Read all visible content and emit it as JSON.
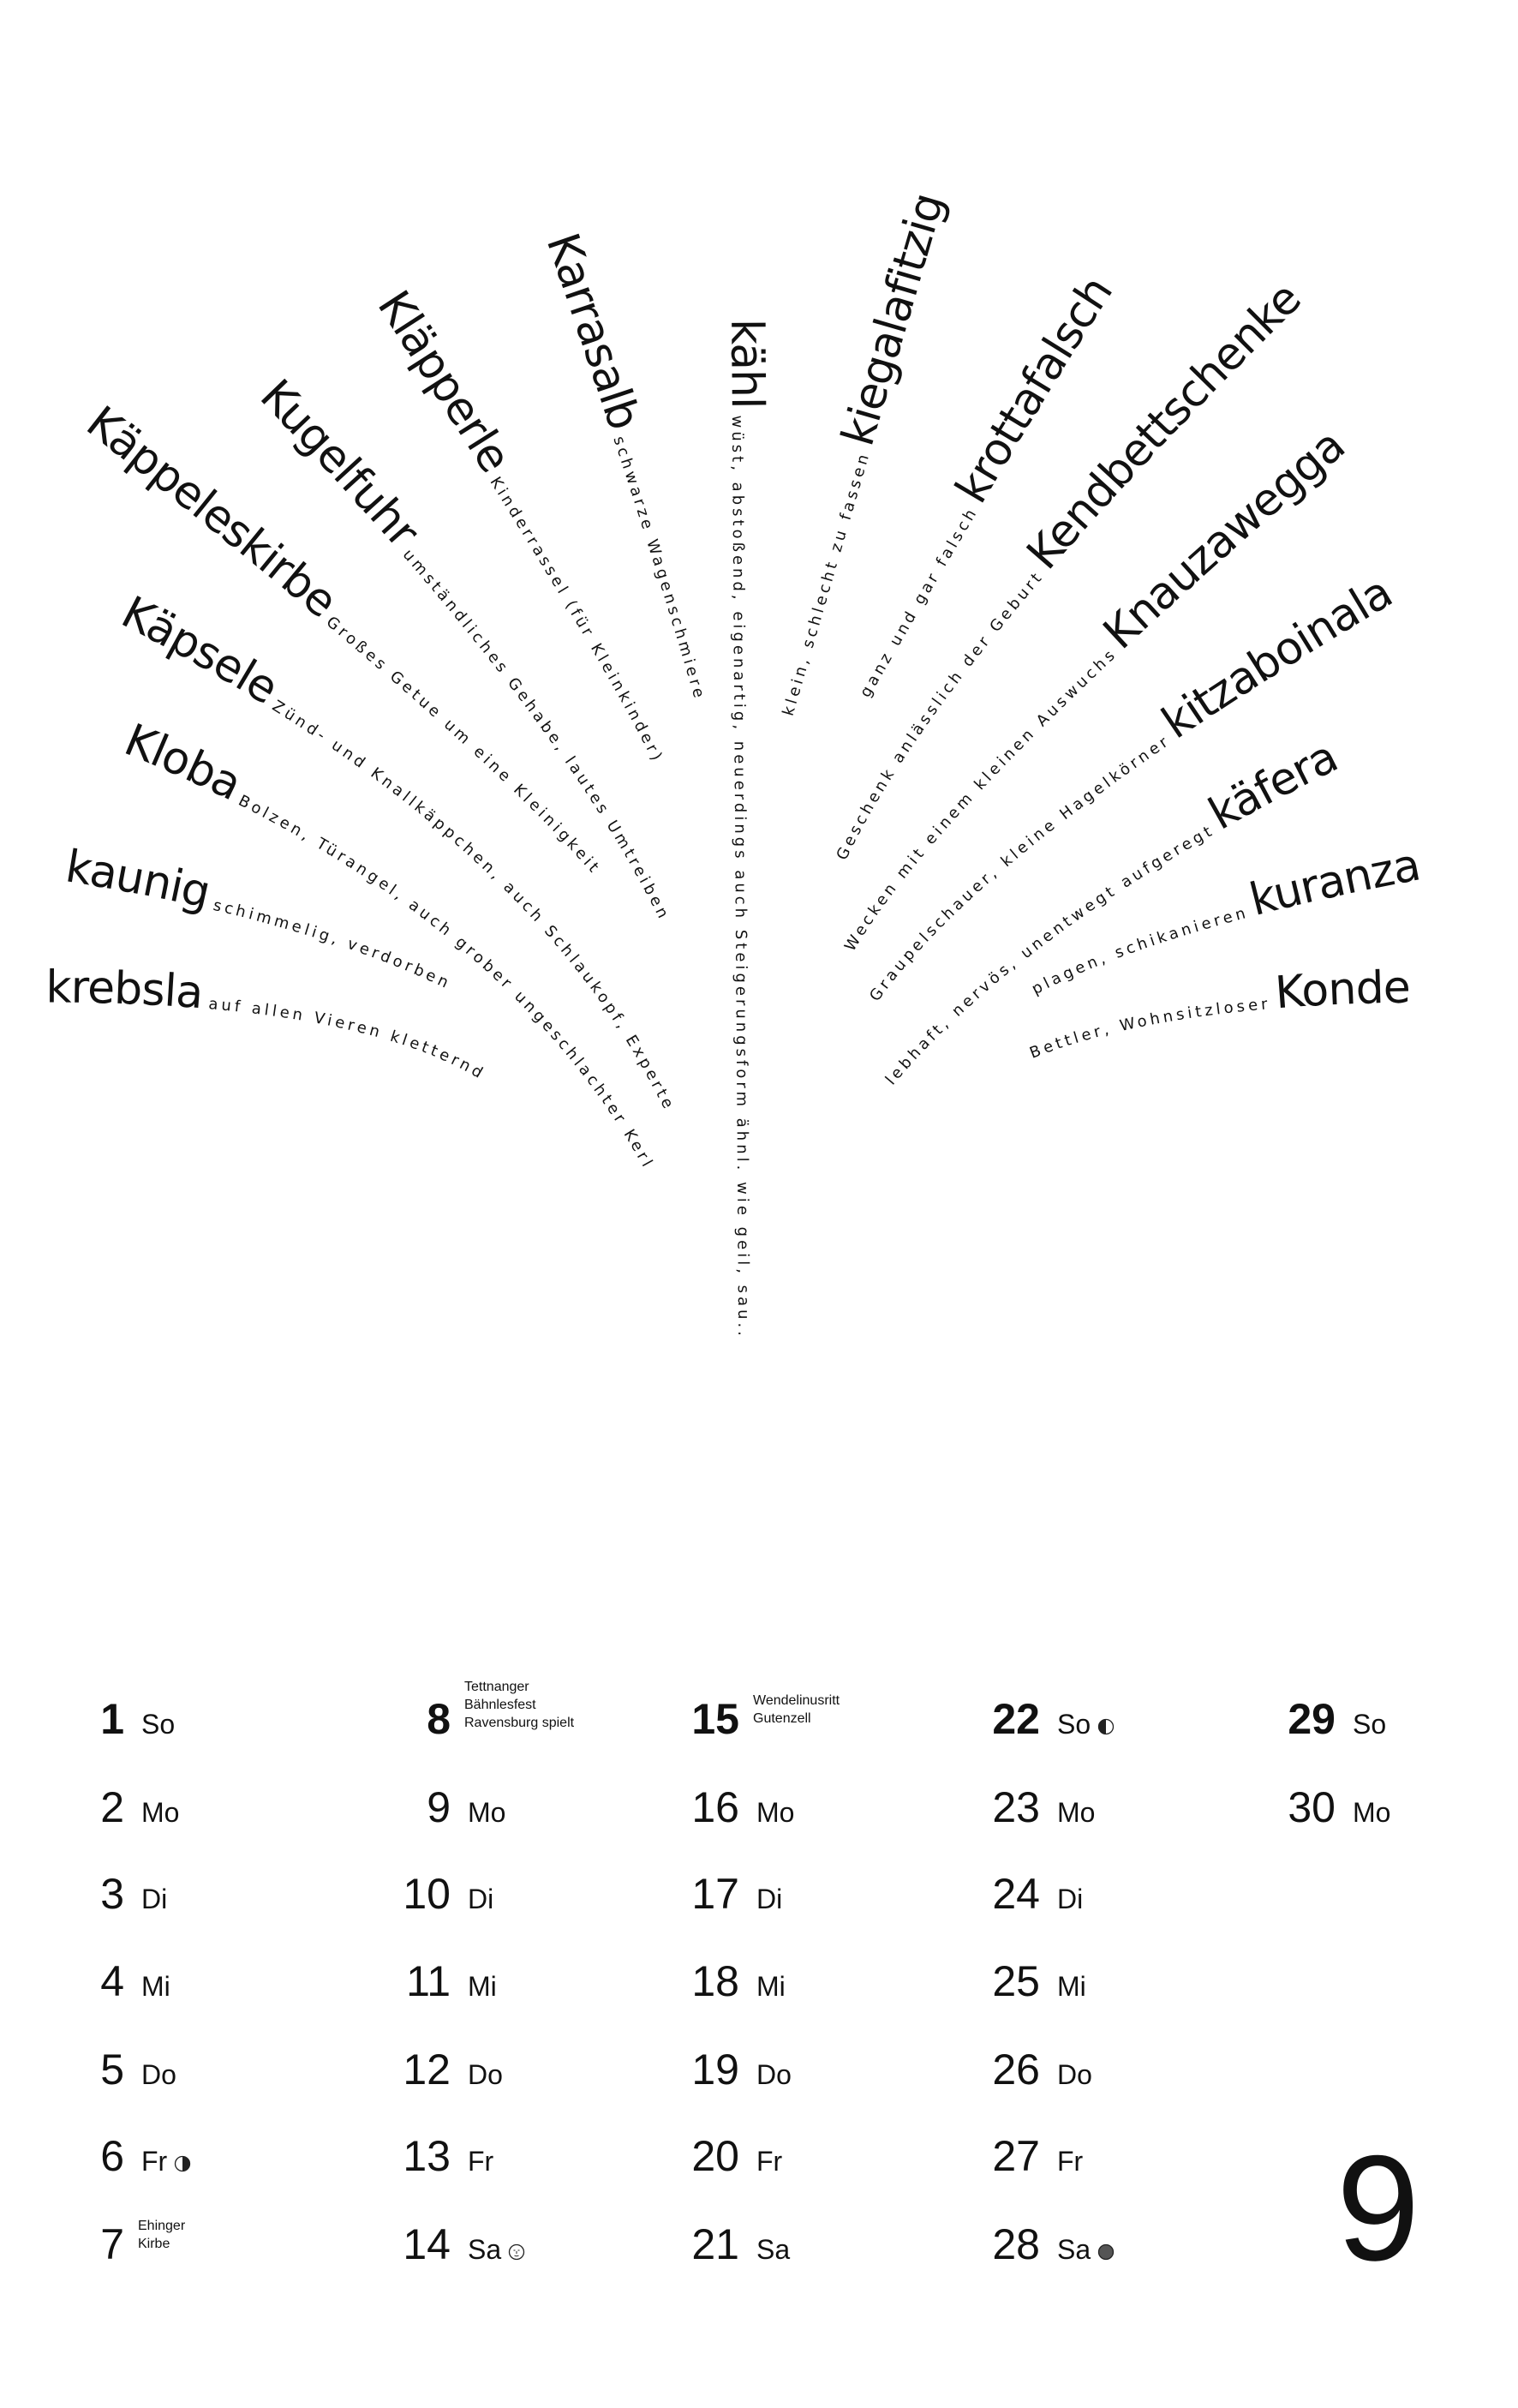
{
  "fan": {
    "left": [
      {
        "word": "Käppeleskirbe",
        "desc": "Großes Getue um eine Kleinigkeit"
      },
      {
        "word": "Kugelfuhr",
        "desc": "umständliches Gehabe, lautes Umtreiben"
      },
      {
        "word": "Kläpperle",
        "desc": "Kinderrassel (für Kleinkinder)"
      },
      {
        "word": "Karrasalb",
        "desc": "schwarze Wagenschmiere"
      },
      {
        "word": "kähl",
        "desc": "wüst, abstoßend, eigenartig, neuerdings auch Steigerungsform ähnl. wie geil, sau.."
      },
      {
        "word": "Käpsele",
        "desc": "Zünd- und Knallkäppchen, auch Schlaukopf, Experte"
      },
      {
        "word": "Kloba",
        "desc": "Bolzen, Türangel, auch grober ungeschlachter Kerl"
      },
      {
        "word": "kaunig",
        "desc": "schimmelig, verdorben"
      },
      {
        "word": "krebsla",
        "desc": "auf allen Vieren kletternd"
      }
    ],
    "right": [
      {
        "word": "kiegalafitzig",
        "desc": "klein, schlecht zu fassen"
      },
      {
        "word": "krottafalsch",
        "desc": "ganz und gar falsch"
      },
      {
        "word": "Kendbettschenke",
        "desc": "Geschenk anlässlich der Geburt"
      },
      {
        "word": "Knauzawegga",
        "desc": "Wecken mit einem kleinen Auswuchs"
      },
      {
        "word": "kitzaboinala",
        "desc": "Graupelschauer, kleine Hagelkörner"
      },
      {
        "word": "käfera",
        "desc": "lebhaft, nervös, unentwegt aufgeregt"
      },
      {
        "word": "kuranza",
        "desc": "plagen, schikanieren"
      },
      {
        "word": "Konde",
        "desc": "Bettler, Wohnsitzloser"
      }
    ]
  },
  "calendar": {
    "month": "9",
    "columns": [
      [
        {
          "num": "1",
          "name": "So",
          "bold": true
        },
        {
          "num": "2",
          "name": "Mo"
        },
        {
          "num": "3",
          "name": "Di"
        },
        {
          "num": "4",
          "name": "Mi"
        },
        {
          "num": "5",
          "name": "Do"
        },
        {
          "num": "6",
          "name": "Fr",
          "moon": "first-quarter-moon"
        },
        {
          "num": "7",
          "note": [
            "Ehinger",
            "Kirbe"
          ]
        }
      ],
      [
        {
          "num": "8",
          "bold": true,
          "note": [
            "Tettnanger",
            "Bähnlesfest",
            "Ravensburg spielt"
          ]
        },
        {
          "num": "9",
          "name": "Mo"
        },
        {
          "num": "10",
          "name": "Di"
        },
        {
          "num": "11",
          "name": "Mi"
        },
        {
          "num": "12",
          "name": "Do"
        },
        {
          "num": "13",
          "name": "Fr"
        },
        {
          "num": "14",
          "name": "Sa",
          "moon": "full-moon"
        }
      ],
      [
        {
          "num": "15",
          "bold": true,
          "note": [
            "Wendelinusritt",
            "Gutenzell"
          ]
        },
        {
          "num": "16",
          "name": "Mo"
        },
        {
          "num": "17",
          "name": "Di"
        },
        {
          "num": "18",
          "name": "Mi"
        },
        {
          "num": "19",
          "name": "Do"
        },
        {
          "num": "20",
          "name": "Fr"
        },
        {
          "num": "21",
          "name": "Sa"
        }
      ],
      [
        {
          "num": "22",
          "name": "So",
          "bold": true,
          "moon": "last-quarter-moon"
        },
        {
          "num": "23",
          "name": "Mo"
        },
        {
          "num": "24",
          "name": "Di"
        },
        {
          "num": "25",
          "name": "Mi"
        },
        {
          "num": "26",
          "name": "Do"
        },
        {
          "num": "27",
          "name": "Fr"
        },
        {
          "num": "28",
          "name": "Sa",
          "moon": "new-moon"
        }
      ],
      [
        {
          "num": "29",
          "name": "So",
          "bold": true
        },
        {
          "num": "30",
          "name": "Mo"
        }
      ]
    ]
  }
}
